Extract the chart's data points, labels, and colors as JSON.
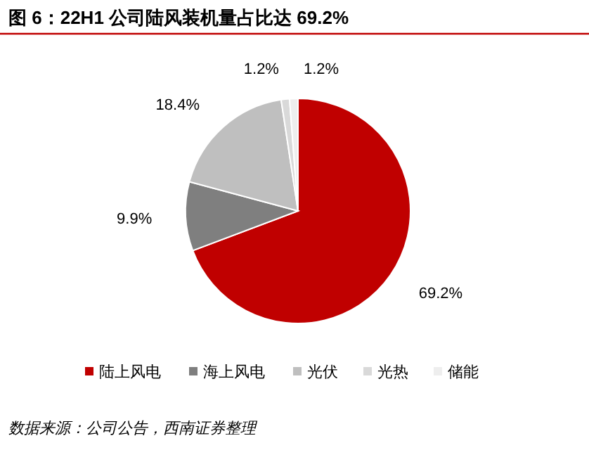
{
  "chart_data": {
    "type": "pie",
    "title": "图 6：22H1 公司陆风装机量占比达 69.2%",
    "categories": [
      "陆上风电",
      "海上风电",
      "光伏",
      "光热",
      "储能"
    ],
    "values": [
      69.2,
      9.9,
      18.4,
      1.2,
      1.2
    ],
    "colors": [
      "#c00000",
      "#7f7f7f",
      "#bfbfbf",
      "#d9d9d9",
      "#eeeeee"
    ],
    "value_labels": [
      "69.2%",
      "9.9%",
      "18.4%",
      "1.2%",
      "1.2%"
    ],
    "legend": "bottom",
    "annotations": [
      "数据来源：公司公告，西南证券整理"
    ]
  }
}
